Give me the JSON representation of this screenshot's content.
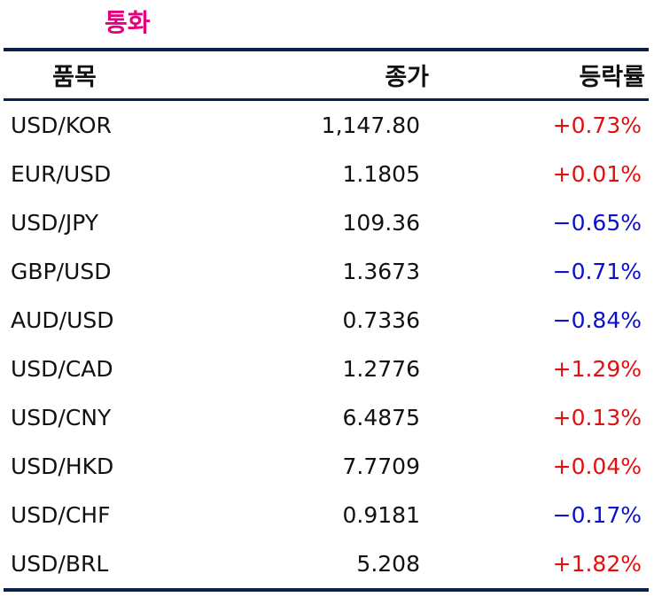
{
  "title": "통화",
  "columns": [
    "품목",
    "종가",
    "등락률"
  ],
  "rows": [
    {
      "item": "USD/KOR",
      "close": "1,147.80",
      "change": "+0.73%",
      "dir": "up"
    },
    {
      "item": "EUR/USD",
      "close": "1.1805",
      "change": "+0.01%",
      "dir": "up"
    },
    {
      "item": "USD/JPY",
      "close": "109.36",
      "change": "−0.65%",
      "dir": "down"
    },
    {
      "item": "GBP/USD",
      "close": "1.3673",
      "change": "−0.71%",
      "dir": "down"
    },
    {
      "item": "AUD/USD",
      "close": "0.7336",
      "change": "−0.84%",
      "dir": "down"
    },
    {
      "item": "USD/CAD",
      "close": "1.2776",
      "change": "+1.29%",
      "dir": "up"
    },
    {
      "item": "USD/CNY",
      "close": "6.4875",
      "change": "+0.13%",
      "dir": "up"
    },
    {
      "item": "USD/HKD",
      "close": "7.7709",
      "change": "+0.04%",
      "dir": "up"
    },
    {
      "item": "USD/CHF",
      "close": "0.9181",
      "change": "−0.17%",
      "dir": "down"
    },
    {
      "item": "USD/BRL",
      "close": "5.208",
      "change": "+1.82%",
      "dir": "up"
    }
  ],
  "colors": {
    "title": "#e6007e",
    "up": "#e01010",
    "down": "#0a10c8",
    "rule": "#0b1f4b"
  }
}
